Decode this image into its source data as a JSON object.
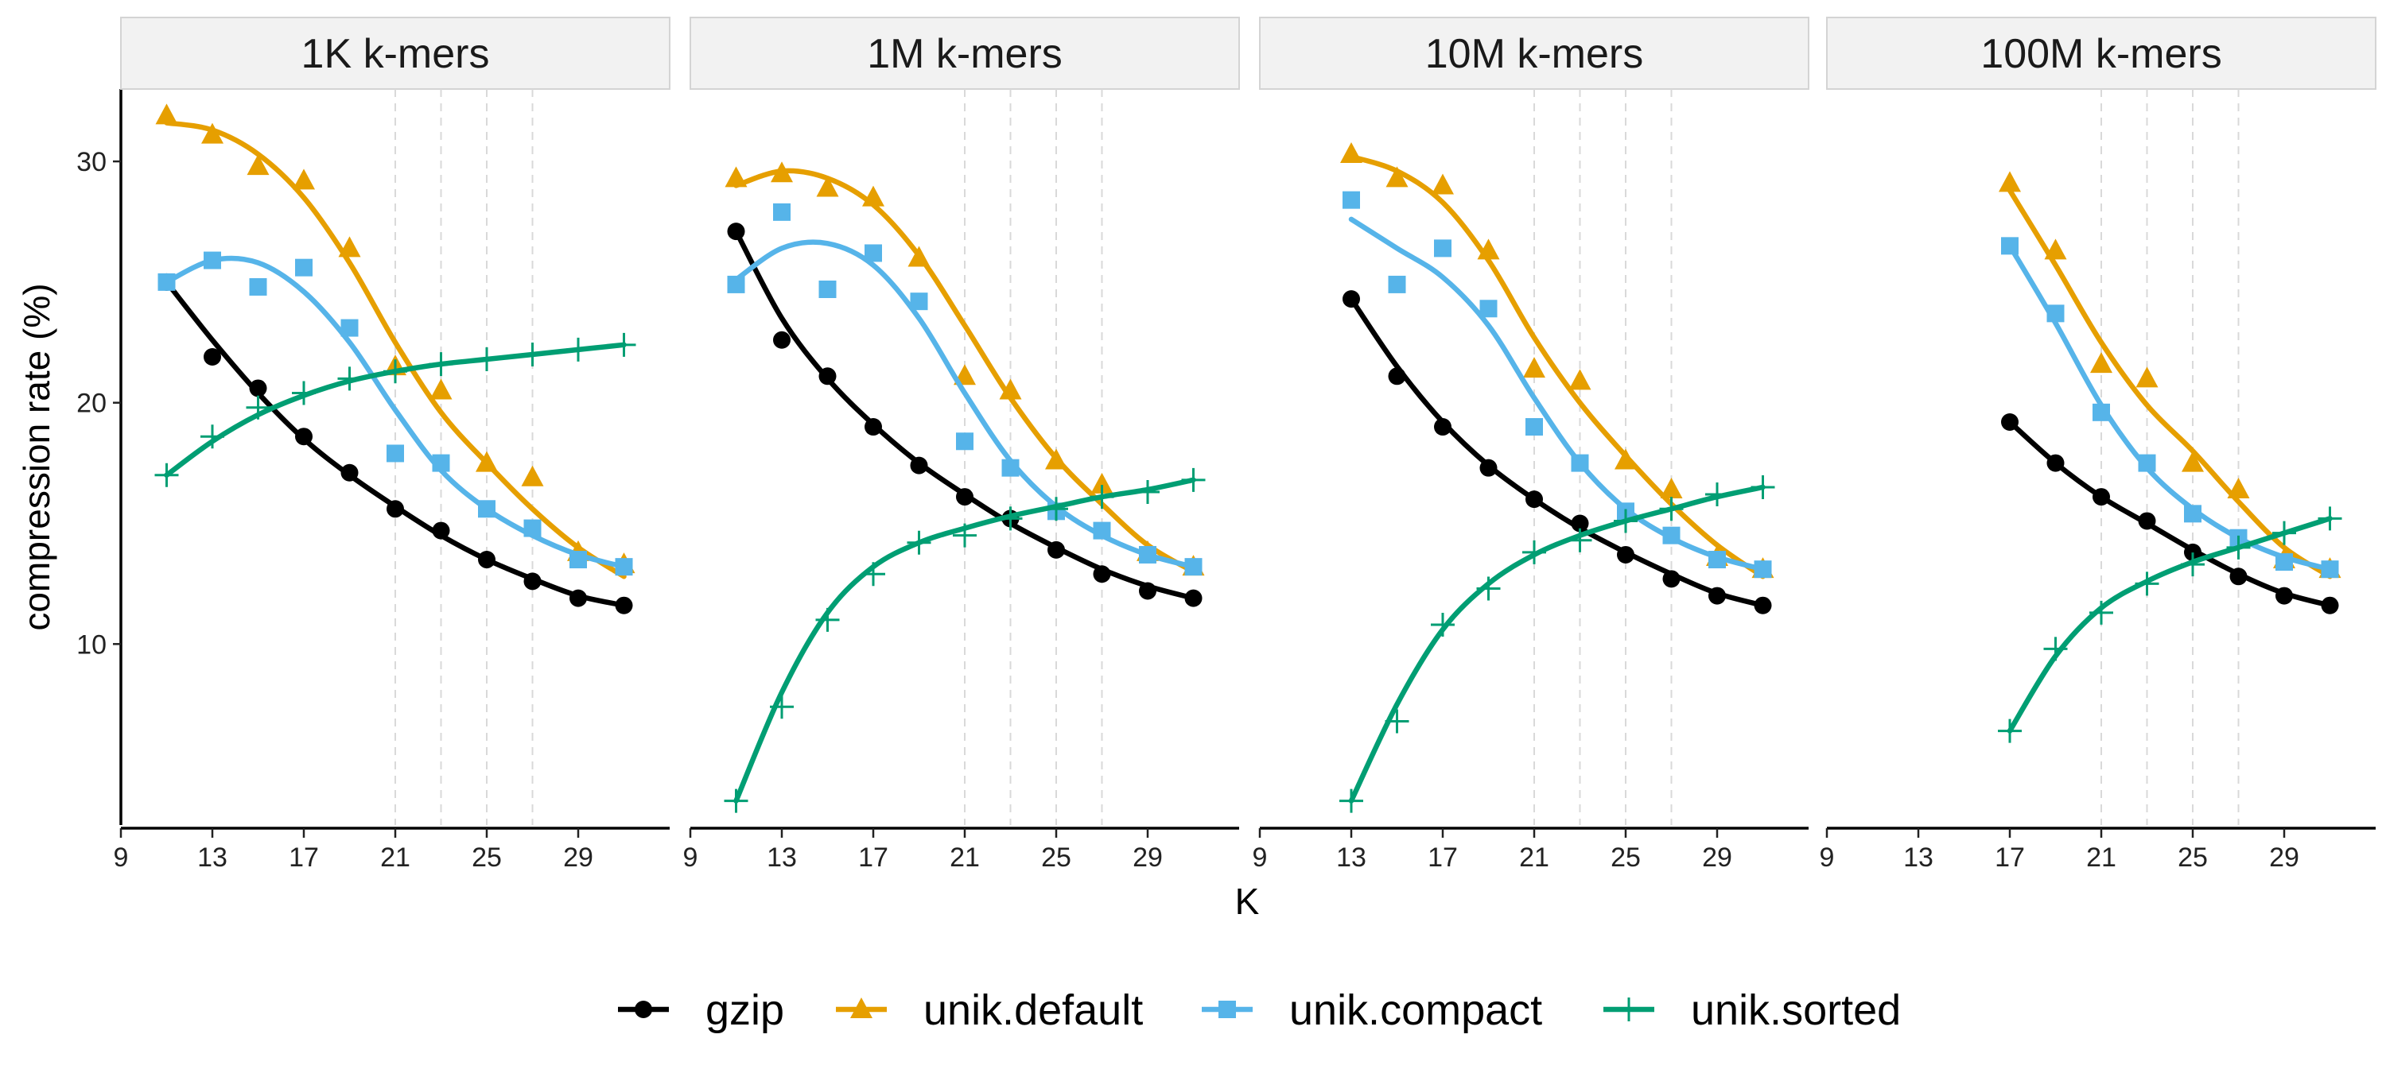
{
  "chart_data": {
    "type": "line",
    "facet_by": "k-mer count",
    "xlabel": "K",
    "ylabel": "compression rate (%)",
    "xlim": [
      9,
      33
    ],
    "ylim": [
      2.5,
      33
    ],
    "x_ticks": [
      9,
      13,
      17,
      21,
      25,
      29
    ],
    "y_ticks": [
      10,
      20,
      30
    ],
    "reference_lines_x": [
      21,
      23,
      25,
      27
    ],
    "colors": {
      "gzip": "#000000",
      "unik.default": "#E69F00",
      "unik.compact": "#56B4E9",
      "unik.sorted": "#009E73"
    },
    "markers": {
      "gzip": "circle",
      "unik.default": "triangle",
      "unik.compact": "square",
      "unik.sorted": "plus"
    },
    "legend": {
      "position": "bottom",
      "entries": [
        "gzip",
        "unik.default",
        "unik.compact",
        "unik.sorted"
      ]
    },
    "panels": [
      {
        "label": "1K k-mers",
        "series": [
          {
            "name": "gzip",
            "x": [
              11,
              13,
              15,
              17,
              19,
              21,
              23,
              25,
              27,
              29,
              31
            ],
            "values": [
              25.0,
              21.9,
              20.6,
              18.6,
              17.1,
              15.6,
              14.7,
              13.5,
              12.6,
              11.9,
              11.6
            ],
            "fit": [
              25.0,
              22.6,
              20.4,
              18.5,
              17.0,
              15.7,
              14.5,
              13.5,
              12.7,
              12.0,
              11.6
            ]
          },
          {
            "name": "unik.default",
            "x": [
              11,
              13,
              15,
              17,
              19,
              21,
              23,
              25,
              27,
              29,
              31
            ],
            "values": [
              31.9,
              31.1,
              29.8,
              29.2,
              26.4,
              21.5,
              20.5,
              17.5,
              16.9,
              13.8,
              13.3
            ],
            "fit": [
              31.6,
              31.3,
              30.3,
              28.5,
              25.8,
              22.5,
              19.6,
              17.5,
              15.6,
              14.0,
              12.8
            ]
          },
          {
            "name": "unik.compact",
            "x": [
              11,
              13,
              15,
              17,
              19,
              21,
              23,
              25,
              27,
              29,
              31
            ],
            "values": [
              25.0,
              25.9,
              24.8,
              25.6,
              23.1,
              17.9,
              17.5,
              15.6,
              14.8,
              13.5,
              13.2
            ],
            "fit": [
              25.0,
              25.9,
              25.8,
              24.6,
              22.5,
              19.7,
              17.2,
              15.6,
              14.5,
              13.7,
              13.2
            ]
          },
          {
            "name": "unik.sorted",
            "x": [
              11,
              13,
              15,
              17,
              19,
              21,
              23,
              25,
              27,
              29,
              31
            ],
            "values": [
              17.0,
              18.6,
              19.8,
              20.4,
              21.0,
              21.3,
              21.6,
              21.8,
              22.0,
              22.2,
              22.4
            ],
            "fit": [
              17.0,
              18.4,
              19.5,
              20.3,
              20.9,
              21.3,
              21.6,
              21.8,
              22.0,
              22.2,
              22.4
            ]
          }
        ]
      },
      {
        "label": "1M k-mers",
        "series": [
          {
            "name": "gzip",
            "x": [
              11,
              13,
              15,
              17,
              19,
              21,
              23,
              25,
              27,
              29,
              31
            ],
            "values": [
              27.1,
              22.6,
              21.1,
              19.0,
              17.4,
              16.1,
              15.2,
              13.9,
              12.9,
              12.2,
              11.9
            ],
            "fit": [
              27.1,
              23.5,
              21.0,
              19.1,
              17.5,
              16.2,
              15.0,
              14.0,
              13.1,
              12.4,
              11.9
            ]
          },
          {
            "name": "unik.default",
            "x": [
              11,
              13,
              15,
              17,
              19,
              21,
              23,
              25,
              27,
              29,
              31
            ],
            "values": [
              29.3,
              29.5,
              28.9,
              28.5,
              26.0,
              21.1,
              20.5,
              17.6,
              16.6,
              13.8,
              13.2
            ],
            "fit": [
              29.0,
              29.6,
              29.3,
              28.2,
              26.1,
              23.2,
              20.2,
              17.7,
              15.8,
              14.1,
              13.0
            ]
          },
          {
            "name": "unik.compact",
            "x": [
              11,
              13,
              15,
              17,
              19,
              21,
              23,
              25,
              27,
              29,
              31
            ],
            "values": [
              24.9,
              27.9,
              24.7,
              26.2,
              24.2,
              18.4,
              17.3,
              15.5,
              14.7,
              13.7,
              13.2
            ],
            "fit": [
              25.1,
              26.4,
              26.6,
              25.7,
              23.5,
              20.4,
              17.6,
              15.7,
              14.5,
              13.7,
              13.2
            ]
          },
          {
            "name": "unik.sorted",
            "x": [
              11,
              13,
              15,
              17,
              19,
              21,
              23,
              25,
              27,
              29,
              31
            ],
            "values": [
              3.5,
              7.4,
              11.0,
              12.9,
              14.2,
              14.5,
              15.2,
              15.6,
              16.1,
              16.3,
              16.8
            ],
            "fit": [
              3.5,
              8.0,
              11.3,
              13.2,
              14.2,
              14.8,
              15.3,
              15.7,
              16.1,
              16.4,
              16.8
            ]
          }
        ]
      },
      {
        "label": "10M k-mers",
        "series": [
          {
            "name": "gzip",
            "x": [
              13,
              15,
              17,
              19,
              21,
              23,
              25,
              27,
              29,
              31
            ],
            "values": [
              24.3,
              21.1,
              19.0,
              17.3,
              16.0,
              15.0,
              13.7,
              12.7,
              12.0,
              11.6
            ],
            "fit": [
              24.3,
              21.5,
              19.2,
              17.4,
              16.0,
              14.8,
              13.8,
              12.9,
              12.1,
              11.6
            ]
          },
          {
            "name": "unik.default",
            "x": [
              13,
              15,
              17,
              19,
              21,
              23,
              25,
              27,
              29,
              31
            ],
            "values": [
              30.3,
              29.3,
              29.0,
              26.3,
              21.4,
              20.9,
              17.6,
              16.4,
              13.6,
              13.1
            ],
            "fit": [
              30.2,
              29.6,
              28.3,
              25.9,
              22.7,
              20.0,
              17.8,
              15.8,
              14.1,
              12.8
            ]
          },
          {
            "name": "unik.compact",
            "x": [
              13,
              15,
              17,
              19,
              21,
              23,
              25,
              27,
              29,
              31
            ],
            "values": [
              28.4,
              24.9,
              26.4,
              23.9,
              19.0,
              17.5,
              15.5,
              14.5,
              13.5,
              13.1
            ],
            "fit": [
              27.6,
              26.4,
              25.2,
              23.2,
              20.2,
              17.5,
              15.6,
              14.4,
              13.6,
              13.1
            ]
          },
          {
            "name": "unik.sorted",
            "x": [
              13,
              15,
              17,
              19,
              21,
              23,
              25,
              27,
              29,
              31
            ],
            "values": [
              3.5,
              6.8,
              10.8,
              12.3,
              13.8,
              14.3,
              15.1,
              15.6,
              16.2,
              16.5
            ],
            "fit": [
              3.5,
              7.5,
              10.6,
              12.5,
              13.7,
              14.5,
              15.1,
              15.6,
              16.1,
              16.5
            ]
          }
        ]
      },
      {
        "label": "100M k-mers",
        "series": [
          {
            "name": "gzip",
            "x": [
              17,
              19,
              21,
              23,
              25,
              27,
              29,
              31
            ],
            "values": [
              19.2,
              17.5,
              16.1,
              15.1,
              13.8,
              12.8,
              12.0,
              11.6
            ],
            "fit": [
              19.2,
              17.5,
              16.1,
              15.0,
              13.9,
              12.9,
              12.1,
              11.6
            ]
          },
          {
            "name": "unik.default",
            "x": [
              17,
              19,
              21,
              23,
              25,
              27,
              29,
              31
            ],
            "values": [
              29.1,
              26.3,
              21.6,
              21.0,
              17.5,
              16.4,
              13.5,
              13.1
            ],
            "fit": [
              28.8,
              25.7,
              22.5,
              19.9,
              18.0,
              15.9,
              14.0,
              12.8
            ]
          },
          {
            "name": "unik.compact",
            "x": [
              17,
              19,
              21,
              23,
              25,
              27,
              29,
              31
            ],
            "values": [
              26.5,
              23.7,
              19.6,
              17.5,
              15.4,
              14.4,
              13.4,
              13.1
            ],
            "fit": [
              26.5,
              23.3,
              19.9,
              17.3,
              15.6,
              14.4,
              13.6,
              13.1
            ]
          },
          {
            "name": "unik.sorted",
            "x": [
              17,
              19,
              21,
              23,
              25,
              27,
              29,
              31
            ],
            "values": [
              6.4,
              9.8,
              11.3,
              12.5,
              13.3,
              14.0,
              14.6,
              15.2
            ],
            "fit": [
              6.4,
              9.5,
              11.5,
              12.6,
              13.4,
              14.0,
              14.6,
              15.2
            ]
          }
        ]
      }
    ]
  }
}
